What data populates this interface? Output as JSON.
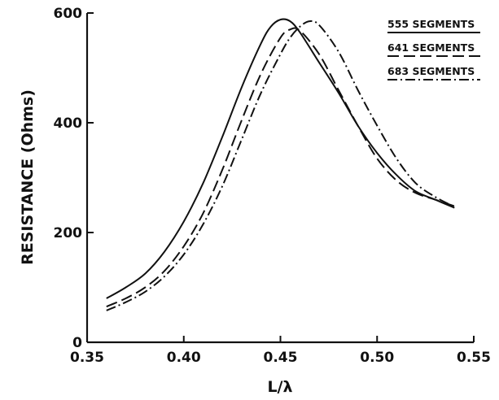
{
  "chart_data": {
    "type": "line",
    "title": "",
    "xlabel": "L/λ",
    "ylabel": "RESISTANCE (Ohms)",
    "xlim": [
      0.35,
      0.55
    ],
    "ylim": [
      0,
      600
    ],
    "xticks": [
      0.35,
      0.4,
      0.45,
      0.5,
      0.55
    ],
    "xtick_labels": [
      "0.35",
      "0.40",
      "0.45",
      "0.50",
      "0.55"
    ],
    "yticks": [
      0,
      200,
      400,
      600
    ],
    "ytick_labels": [
      "0",
      "200",
      "400",
      "600"
    ],
    "grid": false,
    "legend_position": "top-right",
    "series": [
      {
        "name": "555 SEGMENTS",
        "style": "solid",
        "color": "#111111",
        "x": [
          0.36,
          0.37,
          0.38,
          0.39,
          0.4,
          0.41,
          0.42,
          0.43,
          0.44,
          0.445,
          0.45,
          0.455,
          0.46,
          0.47,
          0.48,
          0.49,
          0.5,
          0.51,
          0.52,
          0.53,
          0.54
        ],
        "y": [
          80,
          100,
          125,
          165,
          220,
          290,
          375,
          465,
          545,
          575,
          588,
          585,
          565,
          510,
          455,
          395,
          345,
          305,
          275,
          260,
          245
        ]
      },
      {
        "name": "641 SEGMENTS",
        "style": "dashed",
        "color": "#111111",
        "x": [
          0.36,
          0.37,
          0.38,
          0.39,
          0.4,
          0.41,
          0.42,
          0.43,
          0.44,
          0.45,
          0.455,
          0.46,
          0.47,
          0.48,
          0.49,
          0.5,
          0.51,
          0.52,
          0.53,
          0.54
        ],
        "y": [
          65,
          80,
          100,
          130,
          175,
          235,
          315,
          405,
          490,
          555,
          570,
          568,
          525,
          460,
          395,
          335,
          295,
          272,
          260,
          248
        ]
      },
      {
        "name": "683 SEGMENTS",
        "style": "dash-dot",
        "color": "#111111",
        "x": [
          0.36,
          0.37,
          0.38,
          0.39,
          0.4,
          0.41,
          0.42,
          0.43,
          0.44,
          0.45,
          0.455,
          0.46,
          0.465,
          0.47,
          0.48,
          0.49,
          0.5,
          0.51,
          0.52,
          0.53,
          0.54
        ],
        "y": [
          58,
          73,
          92,
          120,
          160,
          215,
          285,
          370,
          455,
          525,
          555,
          575,
          585,
          578,
          530,
          460,
          395,
          335,
          290,
          265,
          247
        ]
      }
    ]
  }
}
